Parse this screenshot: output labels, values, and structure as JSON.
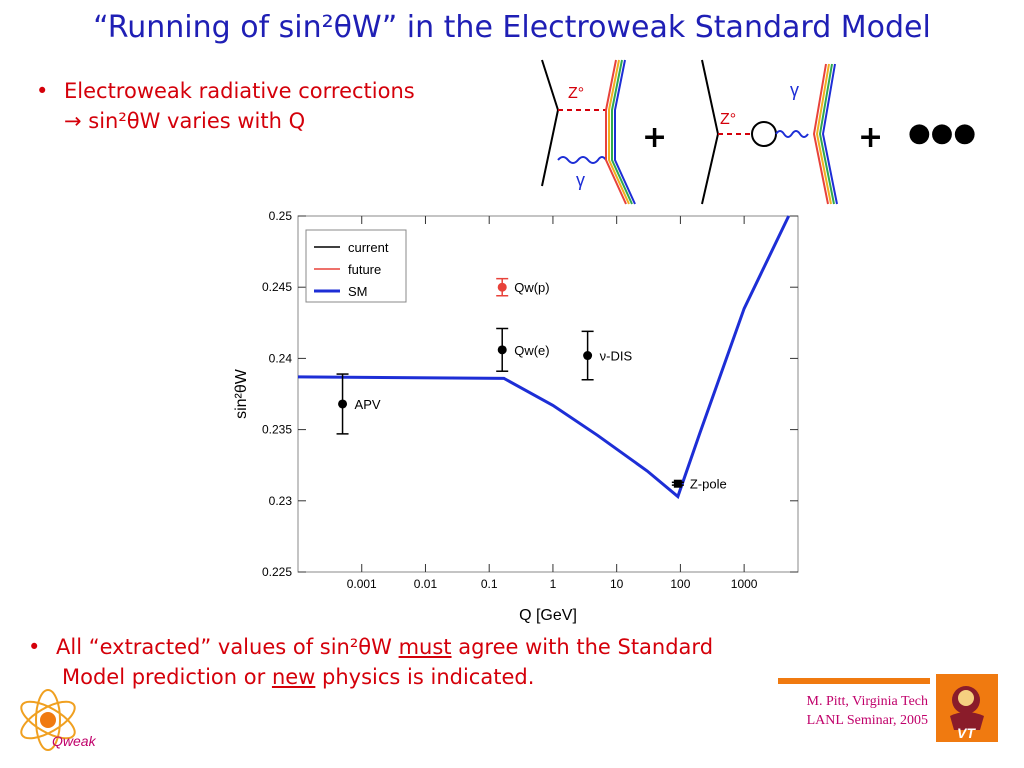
{
  "title": "“Running of sin²θW” in the Electroweak Standard Model",
  "bullet1": {
    "line1": "Electroweak radiative corrections",
    "line2_prefix": "→ sin²θW varies with Q"
  },
  "bullet2": {
    "pre": "All “extracted” values of sin²θW",
    "must": "must",
    "mid": "agree with the Standard",
    "line2_pre": "Model prediction or",
    "new": "new",
    "line2_post": "physics is indicated."
  },
  "diagram": {
    "z_label": "Z°",
    "gamma_label": "γ",
    "plus": "+",
    "dots": "●●●"
  },
  "credit": {
    "line1": "M. Pitt, Virginia Tech",
    "line2": "LANL Seminar, 2005"
  },
  "logo": {
    "qweak": "Qweak",
    "vt": "VT"
  },
  "colors": {
    "title": "#1f1fb5",
    "text": "#d4000a",
    "sm_line": "#1d2ed6",
    "future": "#e8423a",
    "current": "#000000",
    "credit": "#c0006a"
  },
  "chart_data": {
    "type": "line",
    "xlabel": "Q [GeV]",
    "ylabel": "sin²θW",
    "xscale": "log",
    "xlim": [
      0.0001,
      7000
    ],
    "ylim": [
      0.225,
      0.25
    ],
    "x_ticks": [
      "0.001",
      "0.01",
      "0.1",
      "1",
      "10",
      "100",
      "1000"
    ],
    "y_ticks": [
      "0.225",
      "0.23",
      "0.235",
      "0.24",
      "0.245",
      "0.25"
    ],
    "legend": {
      "position": "top-left",
      "entries": [
        {
          "label": "current",
          "color": "#000000"
        },
        {
          "label": "future",
          "color": "#e8423a"
        },
        {
          "label": "SM",
          "color": "#1d2ed6"
        }
      ]
    },
    "sm_curve": [
      {
        "x": 0.0001,
        "y": 0.2387
      },
      {
        "x": 0.17,
        "y": 0.2386
      },
      {
        "x": 1.0,
        "y": 0.2367
      },
      {
        "x": 5.0,
        "y": 0.2346
      },
      {
        "x": 30.0,
        "y": 0.2321
      },
      {
        "x": 91.19,
        "y": 0.2303
      },
      {
        "x": 200.0,
        "y": 0.2347
      },
      {
        "x": 1000.0,
        "y": 0.2435
      },
      {
        "x": 5000.0,
        "y": 0.25
      }
    ],
    "points": [
      {
        "label": "APV",
        "x": 0.0005,
        "y": 0.2368,
        "err": 0.0021,
        "kind": "current"
      },
      {
        "label": "Qw(e)",
        "x": 0.16,
        "y": 0.2406,
        "err": 0.0015,
        "kind": "current"
      },
      {
        "label": "ν-DIS",
        "x": 3.5,
        "y": 0.2402,
        "err": 0.0017,
        "kind": "current"
      },
      {
        "label": "Qw(p)",
        "x": 0.16,
        "y": 0.245,
        "err": 0.0006,
        "kind": "future"
      },
      {
        "label": "Z-pole",
        "x": 91.19,
        "y": 0.2312,
        "err": 0.0001,
        "kind": "current"
      }
    ]
  }
}
